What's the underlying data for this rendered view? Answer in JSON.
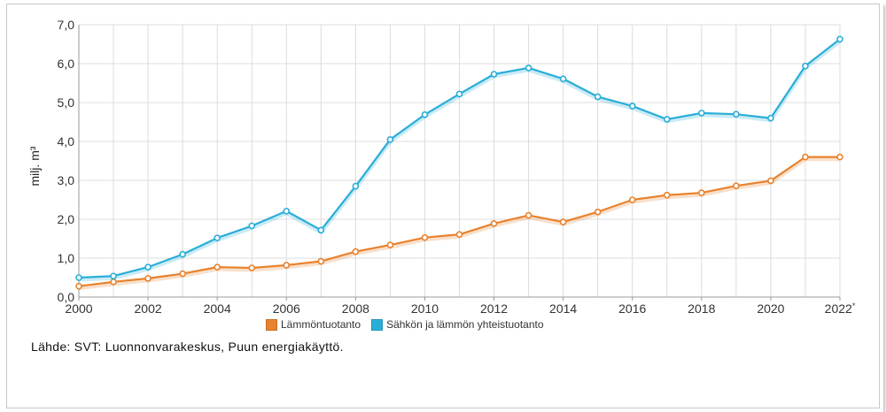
{
  "chart_data": {
    "type": "line",
    "x": [
      2000,
      2001,
      2002,
      2003,
      2004,
      2005,
      2006,
      2007,
      2008,
      2009,
      2010,
      2011,
      2012,
      2013,
      2014,
      2015,
      2016,
      2017,
      2018,
      2019,
      2020,
      2021,
      2022
    ],
    "x_tick_labels": [
      "2000",
      "2002",
      "2004",
      "2006",
      "2008",
      "2010",
      "2012",
      "2014",
      "2016",
      "2018",
      "2020",
      "2022*"
    ],
    "y_tick_labels": [
      "0,0",
      "1,0",
      "2,0",
      "3,0",
      "4,0",
      "5,0",
      "6,0",
      "7,0"
    ],
    "ylabel": "milj. m³",
    "xlabel": "",
    "ylim": [
      0,
      7
    ],
    "grid": true,
    "legend_position": "bottom",
    "series": [
      {
        "name": "Lämmöntuotanto",
        "color": "#e8822e",
        "values": [
          0.28,
          0.39,
          0.48,
          0.6,
          0.77,
          0.75,
          0.82,
          0.92,
          1.17,
          1.34,
          1.53,
          1.61,
          1.89,
          2.1,
          1.93,
          2.19,
          2.5,
          2.62,
          2.68,
          2.86,
          2.99,
          3.6,
          3.6
        ]
      },
      {
        "name": "Sähkön ja lämmön yhteistuotanto",
        "color": "#2aaed8",
        "values": [
          0.5,
          0.54,
          0.77,
          1.1,
          1.52,
          1.83,
          2.21,
          1.72,
          2.85,
          4.05,
          4.69,
          5.22,
          5.73,
          5.89,
          5.61,
          5.15,
          4.91,
          4.57,
          4.73,
          4.7,
          4.6,
          5.94,
          6.63
        ]
      }
    ]
  },
  "source_text": "Lähde: SVT: Luonnonvarakeskus, Puun energiakäyttö."
}
